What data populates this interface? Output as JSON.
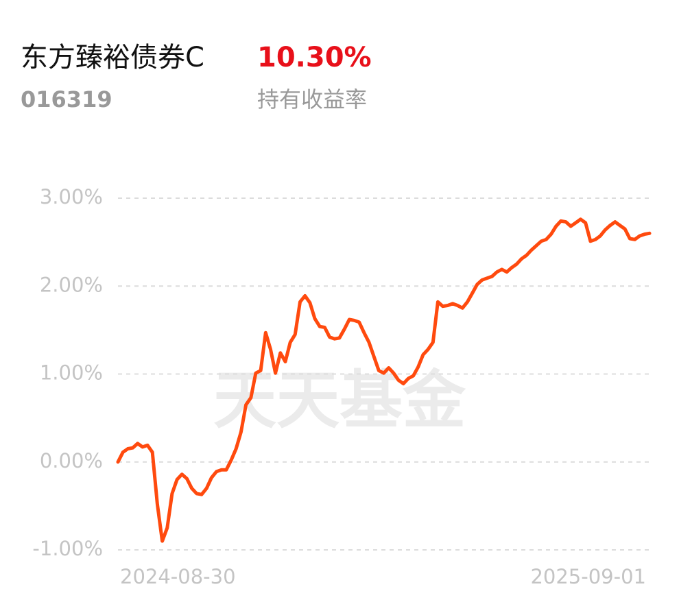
{
  "header": {
    "name": "东方臻裕债券C",
    "return": "10.30%",
    "code": "016319",
    "return_label": "持有收益率"
  },
  "chart_data": {
    "type": "line",
    "watermark": "天天基金",
    "color": "#ff4a0e",
    "grid": true,
    "ylim": [
      -1,
      3
    ],
    "yticks": [
      {
        "value": 3,
        "label": "3.00%"
      },
      {
        "value": 2,
        "label": "2.00%"
      },
      {
        "value": 1,
        "label": "1.00%"
      },
      {
        "value": 0,
        "label": "0.00%"
      },
      {
        "value": -1,
        "label": "-1.00%"
      }
    ],
    "categories": [
      "2024-08-30",
      null,
      null,
      null,
      null,
      null,
      null,
      null,
      null,
      null,
      null,
      null,
      null,
      null,
      null,
      null,
      null,
      null,
      null,
      null,
      null,
      null,
      null,
      null,
      null,
      null,
      null,
      null,
      null,
      null,
      null,
      null,
      null,
      null,
      null,
      null,
      null,
      null,
      null,
      null,
      null,
      null,
      null,
      null,
      null,
      null,
      null,
      null,
      null,
      null,
      null,
      null,
      null,
      null,
      null,
      null,
      null,
      null,
      null,
      null,
      null,
      null,
      null,
      null,
      null,
      null,
      null,
      null,
      null,
      null,
      null,
      null,
      null,
      null,
      null,
      null,
      null,
      null,
      null,
      null,
      null,
      null,
      null,
      null,
      null,
      null,
      null,
      null,
      null,
      null,
      null,
      null,
      null,
      null,
      null,
      null,
      null,
      null,
      null,
      null,
      null,
      null,
      null,
      null,
      null,
      null,
      null,
      null,
      "2025-09-01"
    ],
    "values": [
      0.0,
      0.11,
      0.15,
      0.16,
      0.21,
      0.17,
      0.19,
      0.11,
      -0.48,
      -0.9,
      -0.75,
      -0.36,
      -0.2,
      -0.14,
      -0.19,
      -0.3,
      -0.36,
      -0.37,
      -0.3,
      -0.18,
      -0.11,
      -0.09,
      -0.09,
      0.02,
      0.15,
      0.34,
      0.65,
      0.73,
      1.01,
      1.04,
      1.47,
      1.28,
      1.01,
      1.24,
      1.14,
      1.36,
      1.45,
      1.82,
      1.89,
      1.81,
      1.63,
      1.54,
      1.53,
      1.42,
      1.4,
      1.41,
      1.51,
      1.62,
      1.61,
      1.59,
      1.47,
      1.36,
      1.2,
      1.04,
      1.01,
      1.07,
      1.01,
      0.93,
      0.89,
      0.95,
      0.98,
      1.08,
      1.22,
      1.28,
      1.36,
      1.82,
      1.77,
      1.78,
      1.8,
      1.78,
      1.75,
      1.82,
      1.92,
      2.02,
      2.07,
      2.09,
      2.11,
      2.16,
      2.19,
      2.16,
      2.21,
      2.25,
      2.31,
      2.35,
      2.41,
      2.46,
      2.51,
      2.53,
      2.59,
      2.68,
      2.74,
      2.73,
      2.68,
      2.72,
      2.76,
      2.72,
      2.51,
      2.53,
      2.57,
      2.64,
      2.69,
      2.73,
      2.69,
      2.65,
      2.54,
      2.53,
      2.57,
      2.59,
      2.6
    ]
  }
}
